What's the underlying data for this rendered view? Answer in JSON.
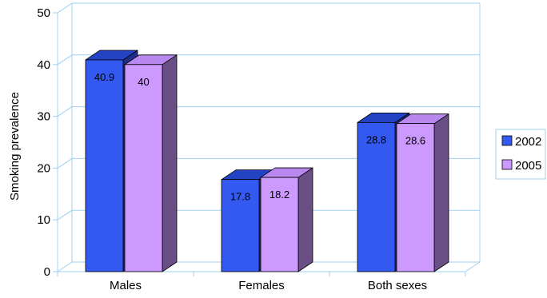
{
  "chart_data": {
    "type": "bar",
    "title": "",
    "xlabel": "",
    "ylabel": "Smoking prevalence",
    "ylim": [
      0,
      50
    ],
    "yticks": [
      0,
      10,
      20,
      30,
      40,
      50
    ],
    "categories": [
      "Males",
      "Females",
      "Both sexes"
    ],
    "series": [
      {
        "name": "2002",
        "values": [
          40.9,
          17.8,
          28.8
        ],
        "data_labels": [
          "40.9",
          "17.8",
          "28.8"
        ]
      },
      {
        "name": "2005",
        "values": [
          40,
          18.2,
          28.6
        ],
        "data_labels": [
          "40",
          "18.2",
          "28.6"
        ]
      }
    ],
    "grid": true,
    "three_d": true,
    "legend_position": "right"
  },
  "colors": {
    "series": [
      {
        "front": "#3359f0",
        "top": "#2442c4",
        "side": "#1d2e88"
      },
      {
        "front": "#cc99ff",
        "top": "#b988ee",
        "side": "#6a4f84"
      }
    ],
    "grid": "#9fd0f0"
  }
}
